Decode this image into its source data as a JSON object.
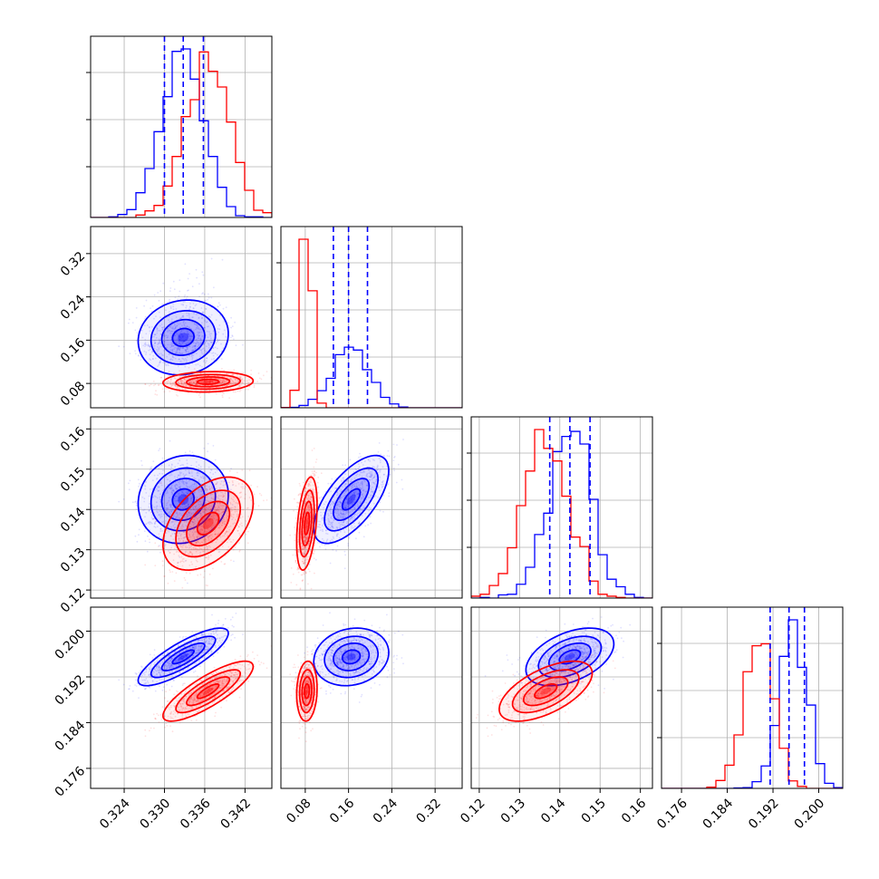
{
  "chart_data": {
    "type": "corner",
    "title": "",
    "grid": true,
    "parameters": [
      {
        "id": "p0",
        "range": [
          0.319,
          0.346
        ],
        "ticks": [
          "0.324",
          "0.330",
          "0.336",
          "0.342"
        ],
        "tick_values": [
          0.324,
          0.33,
          0.336,
          0.342
        ]
      },
      {
        "id": "p1",
        "range": [
          0.035,
          0.37
        ],
        "ticks": [
          "0.08",
          "0.16",
          "0.24",
          "0.32"
        ],
        "tick_values": [
          0.08,
          0.16,
          0.24,
          0.32
        ]
      },
      {
        "id": "p2",
        "range": [
          0.118,
          0.163
        ],
        "ticks": [
          "0.12",
          "0.13",
          "0.14",
          "0.15",
          "0.16"
        ],
        "tick_values": [
          0.12,
          0.13,
          0.14,
          0.15,
          0.16
        ]
      },
      {
        "id": "p3",
        "range": [
          0.1725,
          0.2042
        ],
        "ticks": [
          "0.176",
          "0.184",
          "0.192",
          "0.200"
        ],
        "tick_values": [
          0.176,
          0.184,
          0.192,
          0.2
        ]
      }
    ],
    "series": [
      {
        "color": "#0000ff",
        "mean": [
          0.3328,
          0.165,
          0.1425,
          0.1955
        ],
        "sd": [
          0.0032,
          0.033,
          0.0052,
          0.0024
        ],
        "quantiles": [
          [
            0.33,
            0.3328,
            0.3358
          ],
          [
            0.132,
            0.16,
            0.195
          ],
          [
            0.1375,
            0.1425,
            0.1475
          ],
          [
            0.1915,
            0.1948,
            0.1975
          ]
        ],
        "correlations": {
          "0-1": 0.1,
          "0-2": 0.1,
          "0-3": 0.82,
          "1-2": 0.65,
          "1-3": 0.15,
          "2-3": 0.45
        }
      },
      {
        "color": "#ff0000",
        "mean": [
          0.3365,
          0.083,
          0.1365,
          0.1895
        ],
        "sd": [
          0.0032,
          0.009,
          0.0055,
          0.0025
        ],
        "correlations": {
          "0-1": 0.1,
          "0-2": 0.45,
          "0-3": 0.82,
          "1-2": 0.4,
          "1-3": 0.1,
          "2-3": 0.6
        }
      }
    ]
  }
}
